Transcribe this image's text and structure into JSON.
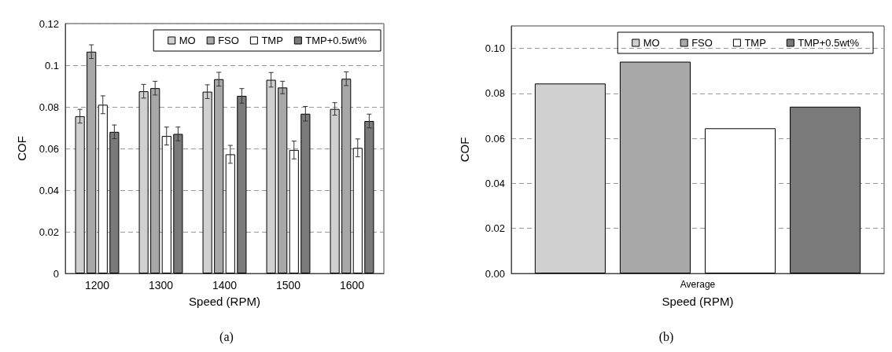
{
  "chart_data": [
    {
      "type": "bar",
      "categories": [
        "1200",
        "1300",
        "1400",
        "1500",
        "1600"
      ],
      "xlabel": "Speed (RPM)",
      "ylabel": "COF",
      "ylim": [
        0,
        0.12
      ],
      "yticks": [
        0,
        0.02,
        0.04,
        0.06,
        0.08,
        0.1,
        0.12
      ],
      "grid": "y",
      "legend": "top right",
      "annotations": [
        "(a)"
      ],
      "series": [
        {
          "name": "MO",
          "color": "#d0d0d0",
          "values": [
            0.0755,
            0.0875,
            0.0873,
            0.093,
            0.079
          ],
          "errors": [
            0.0033,
            0.0033,
            0.0033,
            0.0035,
            0.003
          ]
        },
        {
          "name": "FSO",
          "color": "#a8a8a8",
          "values": [
            0.1065,
            0.089,
            0.0933,
            0.0893,
            0.0935
          ],
          "errors": [
            0.0033,
            0.0033,
            0.0033,
            0.003,
            0.0033
          ]
        },
        {
          "name": "TMP",
          "color": "#ffffff",
          "values": [
            0.081,
            0.066,
            0.0572,
            0.0593,
            0.0603
          ],
          "errors": [
            0.0043,
            0.0043,
            0.0043,
            0.0043,
            0.0043
          ]
        },
        {
          "name": "TMP+0.5wt%",
          "color": "#7a7a7a",
          "values": [
            0.068,
            0.067,
            0.0853,
            0.0767,
            0.0732
          ],
          "errors": [
            0.0033,
            0.0033,
            0.0035,
            0.0035,
            0.0033
          ]
        }
      ]
    },
    {
      "type": "bar",
      "categories": [
        "Average"
      ],
      "xlabel": "Speed (RPM)",
      "ylabel": "COF",
      "ylim": [
        0,
        0.11
      ],
      "yticks": [
        {
          "value": 0,
          "label": "0.00"
        },
        {
          "value": 0.02,
          "label": "0.02"
        },
        {
          "value": 0.04,
          "label": "0.04"
        },
        {
          "value": 0.06,
          "label": "0.06"
        },
        {
          "value": 0.08,
          "label": "0.08"
        },
        {
          "value": 0.1,
          "label": "0.10"
        }
      ],
      "grid": "y",
      "legend": "top right",
      "annotations": [
        "(b)"
      ],
      "series": [
        {
          "name": "MO",
          "color": "#d0d0d0",
          "values": [
            0.0844
          ]
        },
        {
          "name": "FSO",
          "color": "#a8a8a8",
          "values": [
            0.0941
          ]
        },
        {
          "name": "TMP",
          "color": "#ffffff",
          "values": [
            0.0645
          ]
        },
        {
          "name": "TMP+0.5wt%",
          "color": "#7a7a7a",
          "values": [
            0.0741
          ]
        }
      ]
    }
  ]
}
